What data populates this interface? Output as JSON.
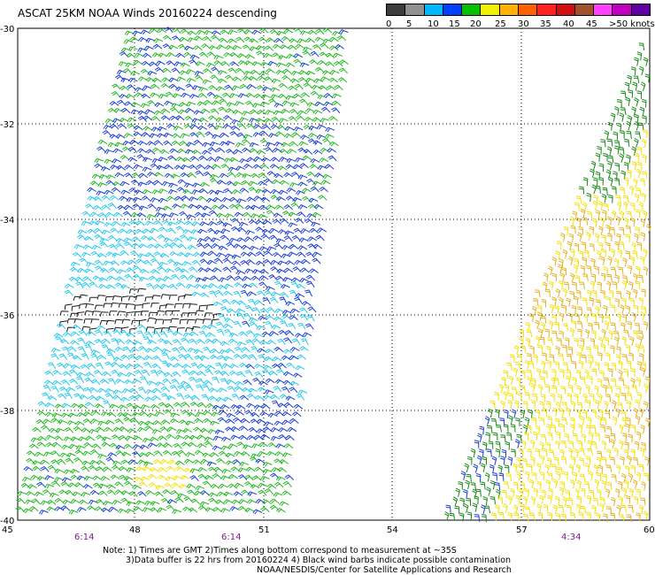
{
  "title": "ASCAT 25KM NOAA Winds 20160224 descending",
  "speed_scale": {
    "colors": [
      "#3c3c3c",
      "#909090",
      "#00b8ff",
      "#0040ff",
      "#00c000",
      "#f0f000",
      "#ffb000",
      "#ff6000",
      "#ff2020",
      "#d01010",
      "#a0522d",
      "#ff40ff",
      "#c000c0",
      "#6000a0"
    ],
    "tick_labels": [
      "0",
      "5",
      "10",
      "15",
      "20",
      "25",
      "30",
      "35",
      "40",
      "45",
      ">50 knots"
    ]
  },
  "axes": {
    "lat_labels": [
      "-30",
      "-32",
      "-34",
      "-36",
      "-38",
      "-40"
    ],
    "lon_labels": [
      "45",
      "48",
      "51",
      "54",
      "57",
      "60"
    ],
    "time_labels": [
      "6:14",
      "6:14",
      "4:34"
    ]
  },
  "notes": [
    "Note: 1) Times are GMT 2)Times along bottom correspond to measurement at ~35S",
    "3)Data buffer is 22 hrs from 20160224 4) Black wind barbs indicate possible contamination",
    "NOAA/NESDIS/Center for Satellite Applications and Research"
  ],
  "wind_swaths": [
    {
      "name": "west-swath",
      "colors": [
        "green",
        "blue",
        "cyan",
        "black",
        "yellow"
      ]
    },
    {
      "name": "east-swath",
      "colors": [
        "yellow",
        "orange",
        "green",
        "blue"
      ]
    }
  ]
}
